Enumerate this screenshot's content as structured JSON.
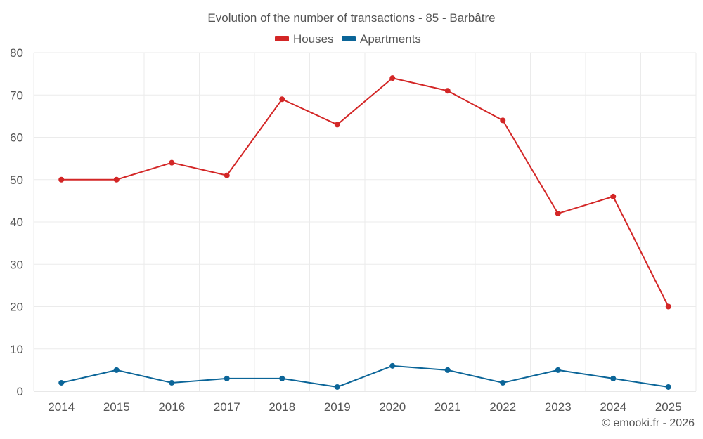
{
  "chart_data": {
    "type": "line",
    "title": "Evolution of the number of transactions - 85 - Barbâtre",
    "categories": [
      "2014",
      "2015",
      "2016",
      "2017",
      "2018",
      "2019",
      "2020",
      "2021",
      "2022",
      "2023",
      "2024",
      "2025"
    ],
    "series": [
      {
        "name": "Houses",
        "color": "#d32626",
        "values": [
          50,
          50,
          54,
          51,
          69,
          63,
          74,
          71,
          64,
          42,
          46,
          20
        ]
      },
      {
        "name": "Apartments",
        "color": "#0b6598",
        "values": [
          2,
          5,
          2,
          3,
          3,
          1,
          6,
          5,
          2,
          5,
          3,
          1
        ]
      }
    ],
    "ylim": [
      0,
      80
    ],
    "yticks": [
      "0",
      "10",
      "20",
      "30",
      "40",
      "50",
      "60",
      "70",
      "80"
    ],
    "xlabel": "",
    "ylabel": "",
    "grid": true,
    "legend_position": "top-center"
  },
  "footer": {
    "credit": "© emooki.fr - 2026"
  }
}
